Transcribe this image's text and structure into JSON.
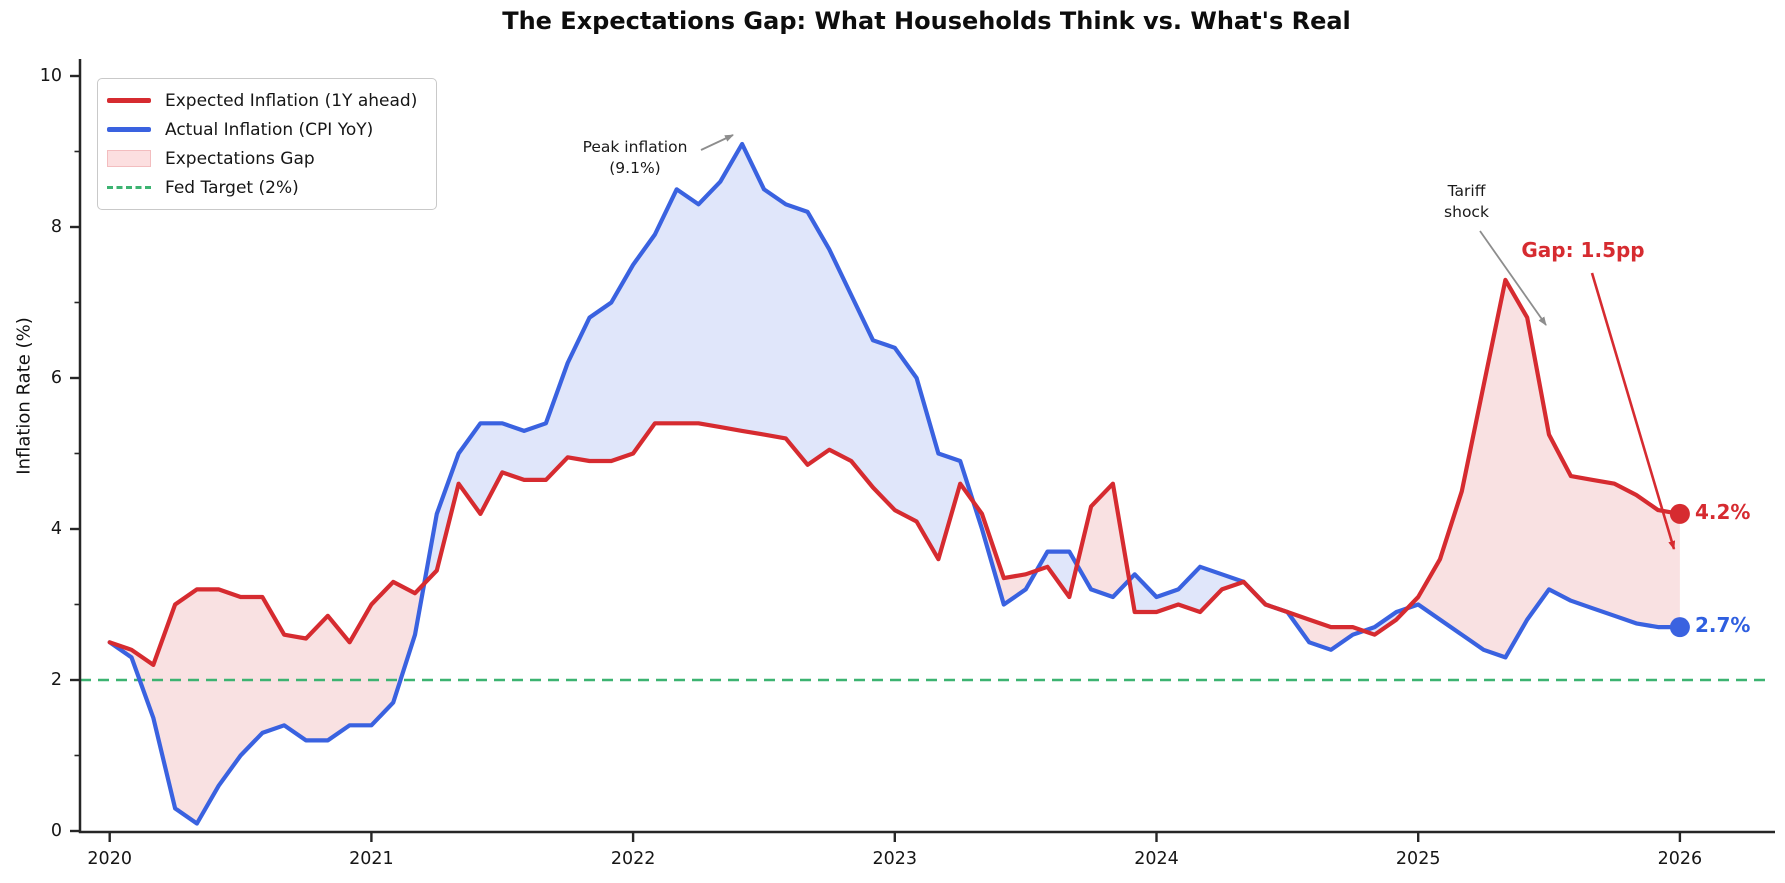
{
  "title": "The Expectations Gap: What Households Think vs. What's Real",
  "y_axis": {
    "label": "Inflation Rate (%)",
    "ticks": [
      0,
      2,
      4,
      6,
      8,
      10
    ],
    "minor_ticks": [
      1,
      3,
      5,
      7,
      9
    ],
    "min": 0,
    "max": 10
  },
  "x_axis": {
    "ticks": [
      "2020",
      "2021",
      "2022",
      "2023",
      "2024",
      "2025",
      "2026"
    ]
  },
  "legend": {
    "items": [
      {
        "label": "Expected Inflation (1Y ahead)",
        "type": "line",
        "color": "#d62b30"
      },
      {
        "label": "Actual Inflation (CPI YoY)",
        "type": "line",
        "color": "#3a62e0"
      },
      {
        "label": "Expectations Gap",
        "type": "patch",
        "color": "#fcdfe0"
      },
      {
        "label": "Fed Target (2%)",
        "type": "dashed",
        "color": "#3cb371"
      }
    ]
  },
  "annotations": {
    "peak": {
      "line1": "Peak inflation",
      "line2": "(9.1%)"
    },
    "tariff": {
      "line1": "Tariff",
      "line2": "shock"
    },
    "gap": {
      "label": "Gap: 1.5pp",
      "color": "#d62b30"
    },
    "end_expected": {
      "label": "4.2%",
      "color": "#d62b30"
    },
    "end_actual": {
      "label": "2.7%",
      "color": "#2f5fe0"
    }
  },
  "chart_data": {
    "type": "line",
    "title": "The Expectations Gap: What Households Think vs. What's Real",
    "xlabel": "",
    "ylabel": "Inflation Rate (%)",
    "ylim": [
      0,
      10
    ],
    "x_start": "2020-01",
    "x_end": "2026-01",
    "frequency": "monthly",
    "grid": false,
    "legend_position": "upper left",
    "fed_target": 2.0,
    "colors": {
      "expected": "#d62b30",
      "actual": "#3a62e0",
      "target": "#3cb371",
      "gap_fill_expected_above": "rgba(216,40,50,0.14)",
      "gap_fill_actual_above": "rgba(62,100,225,0.16)",
      "annotation_arrow_gray": "#8d8d8d",
      "spine": "#262626"
    },
    "series": [
      {
        "name": "Expected Inflation (1Y ahead)",
        "values": [
          2.5,
          2.4,
          2.2,
          3.0,
          3.2,
          3.2,
          3.1,
          3.1,
          2.6,
          2.55,
          2.85,
          2.5,
          3.0,
          3.3,
          3.15,
          3.45,
          4.6,
          4.2,
          4.75,
          4.65,
          4.65,
          4.95,
          4.9,
          4.9,
          5.0,
          5.4,
          5.4,
          5.4,
          5.35,
          5.3,
          5.25,
          5.2,
          4.85,
          5.05,
          4.9,
          4.55,
          4.25,
          4.1,
          3.6,
          4.6,
          4.2,
          3.35,
          3.4,
          3.5,
          3.1,
          4.3,
          4.6,
          2.9,
          2.9,
          3.0,
          2.9,
          3.2,
          3.3,
          3.0,
          2.9,
          2.8,
          2.7,
          2.7,
          2.6,
          2.8,
          3.1,
          3.6,
          4.5,
          5.9,
          7.3,
          6.8,
          5.25,
          4.7,
          4.65,
          4.6,
          4.45,
          4.25,
          4.2
        ]
      },
      {
        "name": "Actual Inflation (CPI YoY)",
        "values": [
          2.5,
          2.3,
          1.5,
          0.3,
          0.1,
          0.6,
          1.0,
          1.3,
          1.4,
          1.2,
          1.2,
          1.4,
          1.4,
          1.7,
          2.6,
          4.2,
          5.0,
          5.4,
          5.4,
          5.3,
          5.4,
          6.2,
          6.8,
          7.0,
          7.5,
          7.9,
          8.5,
          8.3,
          8.6,
          9.1,
          8.5,
          8.3,
          8.2,
          7.7,
          7.1,
          6.5,
          6.4,
          6.0,
          5.0,
          4.9,
          4.0,
          3.0,
          3.2,
          3.7,
          3.7,
          3.2,
          3.1,
          3.4,
          3.1,
          3.2,
          3.5,
          3.4,
          3.3,
          3.0,
          2.9,
          2.5,
          2.4,
          2.6,
          2.7,
          2.9,
          3.0,
          2.8,
          2.6,
          2.4,
          2.3,
          2.8,
          3.2,
          3.05,
          2.95,
          2.85,
          2.75,
          2.7,
          2.7
        ]
      }
    ],
    "end_values": {
      "expected": 4.2,
      "actual": 2.7,
      "gap_pp": 1.5
    },
    "peak_value": 9.1,
    "peak_month": "2022-06"
  }
}
